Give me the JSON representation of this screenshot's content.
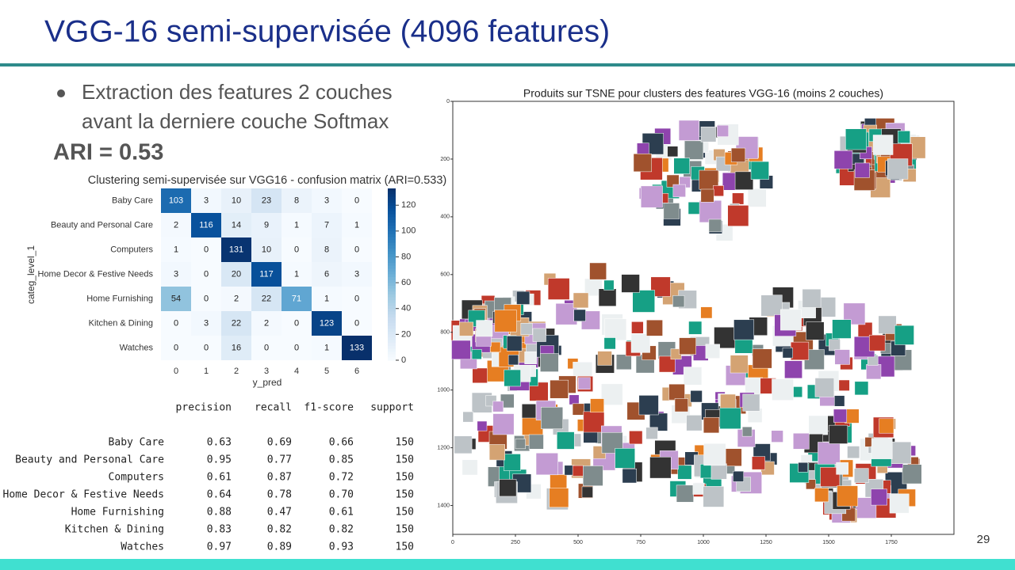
{
  "slide": {
    "title": "VGG-16 semi-supervisée (4096 features)",
    "bullet": "Extraction des features 2 couches avant la derniere couche Softmax",
    "ari": "ARI = 0.53",
    "page_number": "29"
  },
  "chart_data": [
    {
      "type": "heatmap",
      "title": "Clustering semi-supervisée sur VGG16 - confusion matrix (ARI=0.533)",
      "x_label": "y_pred",
      "y_label": "categ_level_1",
      "x_categories": [
        "0",
        "1",
        "2",
        "3",
        "4",
        "5",
        "6"
      ],
      "y_categories": [
        "Baby Care",
        "Beauty and Personal Care",
        "Computers",
        "Home Decor & Festive Needs",
        "Home Furnishing",
        "Kitchen & Dining",
        "Watches"
      ],
      "values": [
        [
          103,
          3,
          10,
          23,
          8,
          3,
          0
        ],
        [
          2,
          116,
          14,
          9,
          1,
          7,
          1
        ],
        [
          1,
          0,
          131,
          10,
          0,
          8,
          0
        ],
        [
          3,
          0,
          20,
          117,
          1,
          6,
          3
        ],
        [
          54,
          0,
          2,
          22,
          71,
          1,
          0
        ],
        [
          0,
          3,
          22,
          2,
          0,
          123,
          0
        ],
        [
          0,
          0,
          16,
          0,
          0,
          1,
          133
        ]
      ],
      "clim": [
        0,
        133
      ],
      "colorbar_ticks": [
        0,
        20,
        40,
        60,
        80,
        100,
        120
      ],
      "colormap": [
        "#f7fbff",
        "#deebf7",
        "#c6dbef",
        "#9ecae1",
        "#6baed6",
        "#4292c6",
        "#2171b5",
        "#08519c",
        "#08306b"
      ]
    },
    {
      "type": "image-scatter",
      "title": "Produits sur TSNE pour clusters des features VGG-16 (moins 2 couches)",
      "xlim": [
        0,
        2000
      ],
      "ylim": [
        0,
        1500
      ],
      "xticks": [
        0,
        250,
        500,
        750,
        1000,
        1250,
        1500,
        1750
      ],
      "yticks": [
        0,
        200,
        400,
        600,
        800,
        1000,
        1200,
        1400
      ]
    }
  ],
  "report": {
    "headers": [
      "precision",
      "recall",
      "f1-score",
      "support"
    ],
    "rows": [
      [
        "Baby Care",
        "0.63",
        "0.69",
        "0.66",
        "150"
      ],
      [
        "Beauty and Personal Care",
        "0.95",
        "0.77",
        "0.85",
        "150"
      ],
      [
        "Computers",
        "0.61",
        "0.87",
        "0.72",
        "150"
      ],
      [
        "Home Decor & Festive Needs",
        "0.64",
        "0.78",
        "0.70",
        "150"
      ],
      [
        "Home Furnishing",
        "0.88",
        "0.47",
        "0.61",
        "150"
      ],
      [
        "Kitchen & Dining",
        "0.83",
        "0.82",
        "0.82",
        "150"
      ],
      [
        "Watches",
        "0.97",
        "0.89",
        "0.93",
        "150"
      ]
    ]
  }
}
